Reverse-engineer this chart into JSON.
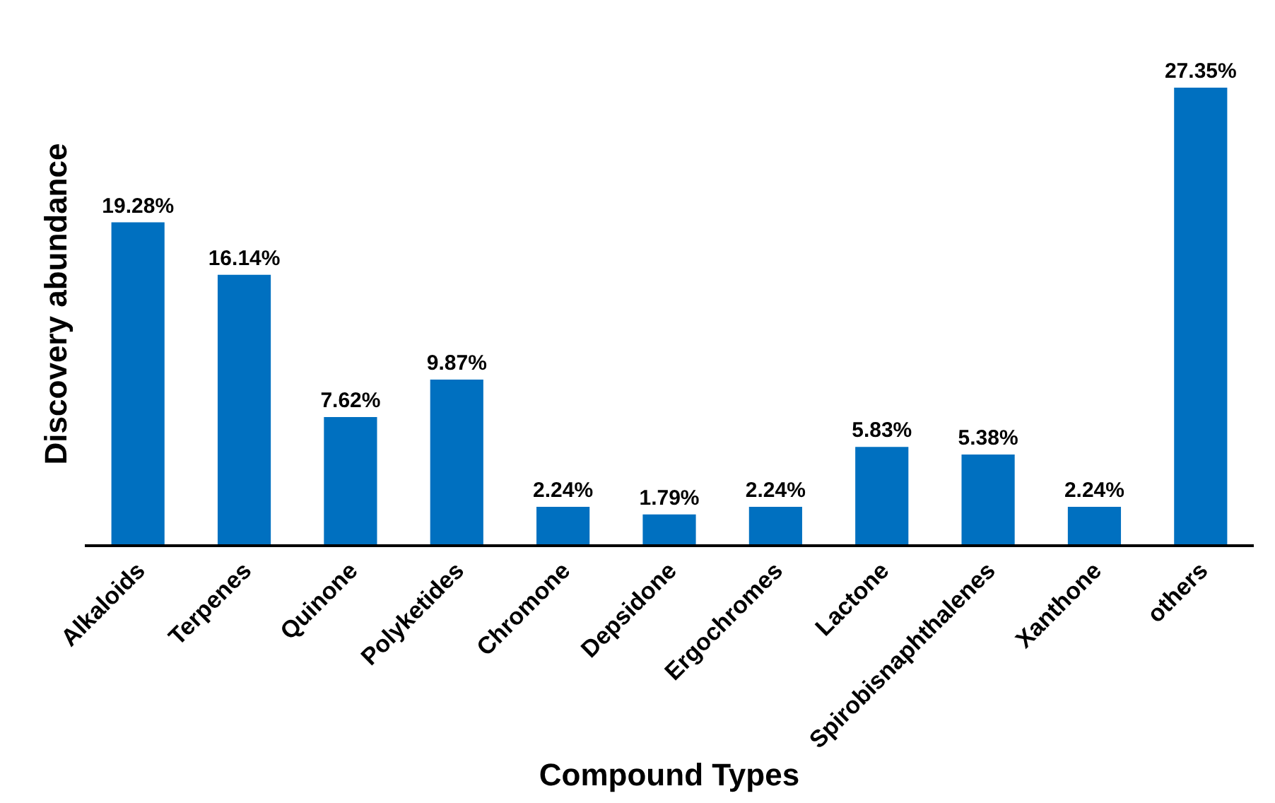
{
  "chart_data": {
    "type": "bar",
    "xlabel": "Compound Types",
    "ylabel": "Discovery abundance",
    "categories": [
      "Alkaloids",
      "Terpenes",
      "Quinone",
      "Polyketides",
      "Chromone",
      "Depsidone",
      "Ergochromes",
      "Lactone",
      "Spirobisnaphthalenes",
      "Xanthone",
      "others"
    ],
    "values": [
      19.28,
      16.14,
      7.62,
      9.87,
      2.24,
      1.79,
      2.24,
      5.83,
      5.38,
      2.24,
      27.35
    ],
    "value_labels": [
      "19.28%",
      "16.14%",
      "7.62%",
      "9.87%",
      "2.24%",
      "1.79%",
      "2.24%",
      "5.83%",
      "5.38%",
      "2.24%",
      "27.35%"
    ],
    "color": "#0070c0",
    "tick_labels": "x"
  }
}
